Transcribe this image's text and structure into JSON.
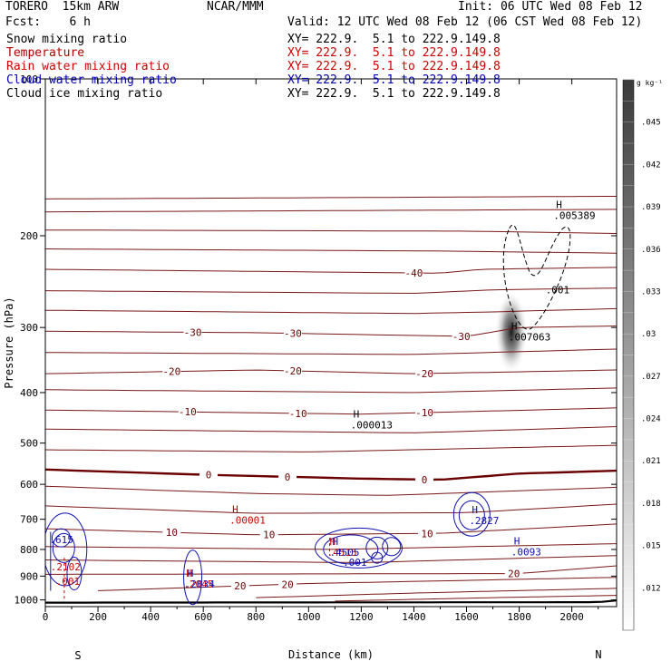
{
  "header": {
    "model": "TORERO  15km ARW",
    "center": "NCAR/MMM",
    "init": "Init: 06 UTC Wed 08 Feb 12",
    "fcst": "Fcst:    6 h",
    "valid": "Valid: 12 UTC Wed 08 Feb 12 (06 CST Wed 08 Feb 12)"
  },
  "fields": [
    {
      "name": "Snow mixing ratio",
      "xy": "XY= 222.9.  5.1 to 222.9.149.8",
      "color": "#000000"
    },
    {
      "name": "Temperature",
      "xy": "XY= 222.9.  5.1 to 222.9.149.8",
      "color": "#b00000"
    },
    {
      "name": "Rain water mixing ratio",
      "xy": "XY= 222.9.  5.1 to 222.9.149.8",
      "color": "#d00000"
    },
    {
      "name": "Cloud water mixing ratio",
      "xy": "XY= 222.9.  5.1 to 222.9.149.8",
      "color": "#0000b0"
    },
    {
      "name": "Cloud ice mixing ratio",
      "xy": "XY= 222.9.  5.1 to 222.9.149.8",
      "color": "#000000"
    }
  ],
  "colors": {
    "temperature": "#7a1818",
    "temperature_zero": "#6a0000",
    "rain": "#cc0000",
    "cloud_water": "#1010b0",
    "ice": "#000000",
    "snow_shade": "#000000"
  },
  "chart_data": {
    "type": "contour",
    "title": "",
    "xlabel": "Distance (km)",
    "ylabel": "Pressure (hPa)",
    "xlim": [
      0,
      2170
    ],
    "ylim": [
      1030,
      100
    ],
    "y_scale": "log",
    "x_ticks": [
      0,
      200,
      400,
      600,
      800,
      1000,
      1200,
      1400,
      1600,
      1800,
      2000
    ],
    "x_tick_labels": [
      "0",
      "200",
      "400",
      "600",
      "800",
      "1000",
      "1200",
      "1400",
      "1600",
      "1800",
      "2000"
    ],
    "y_ticks": [
      100,
      200,
      300,
      400,
      500,
      600,
      700,
      800,
      900,
      1000
    ],
    "y_tick_labels": [
      "100",
      "200",
      "300",
      "400",
      "500",
      "600",
      "700",
      "800",
      "900",
      "1000"
    ],
    "end_labels": {
      "left": "S",
      "right": "N"
    },
    "colorbar": {
      "unit": "g kg⁻¹",
      "ticks": [
        0.012,
        0.015,
        0.018,
        0.021,
        0.024,
        0.027,
        0.03,
        0.033,
        0.036,
        0.039,
        0.042,
        0.045
      ],
      "tick_labels": [
        ".012",
        ".015",
        ".018",
        ".021",
        ".024",
        ".027",
        ".03",
        ".033",
        ".036",
        ".039",
        ".042",
        ".045"
      ],
      "range": [
        0.009,
        0.048
      ]
    },
    "temperature_contours": [
      {
        "pressure_at_x": [
          [
            0,
            170
          ],
          [
            2170,
            168
          ]
        ]
      },
      {
        "pressure_at_x": [
          [
            0,
            180
          ],
          [
            2170,
            178
          ]
        ]
      },
      {
        "pressure_at_x": [
          [
            0,
            195
          ],
          [
            1600,
            196
          ],
          [
            2170,
            198
          ]
        ]
      },
      {
        "pressure_at_x": [
          [
            0,
            212
          ],
          [
            1500,
            214
          ],
          [
            2170,
            216
          ]
        ]
      },
      {
        "pressure_at_x": [
          [
            0,
            232
          ],
          [
            1500,
            236
          ],
          [
            1650,
            232
          ],
          [
            2170,
            230
          ]
        ],
        "label": "-40",
        "label_x": 1400
      },
      {
        "pressure_at_x": [
          [
            0,
            255
          ],
          [
            1400,
            258
          ],
          [
            1700,
            254
          ],
          [
            2170,
            252
          ]
        ]
      },
      {
        "pressure_at_x": [
          [
            0,
            278
          ],
          [
            1400,
            282
          ],
          [
            1700,
            280
          ],
          [
            2170,
            276
          ]
        ]
      },
      {
        "pressure_at_x": [
          [
            0,
            305
          ],
          [
            800,
            307
          ],
          [
            1600,
            312
          ],
          [
            1800,
            300
          ],
          [
            2170,
            298
          ]
        ],
        "label": "-30",
        "labels_x": [
          560,
          940,
          1580
        ]
      },
      {
        "pressure_at_x": [
          [
            0,
            335
          ],
          [
            1400,
            338
          ],
          [
            2170,
            330
          ]
        ]
      },
      {
        "pressure_at_x": [
          [
            0,
            368
          ],
          [
            800,
            362
          ],
          [
            1400,
            368
          ],
          [
            2170,
            362
          ]
        ],
        "label": "-20",
        "labels_x": [
          480,
          940,
          1440
        ]
      },
      {
        "pressure_at_x": [
          [
            0,
            395
          ],
          [
            1400,
            400
          ],
          [
            2170,
            392
          ]
        ]
      },
      {
        "pressure_at_x": [
          [
            0,
            432
          ],
          [
            1200,
            440
          ],
          [
            2170,
            428
          ]
        ],
        "label": "-10",
        "labels_x": [
          540,
          960,
          1440
        ]
      },
      {
        "pressure_at_x": [
          [
            0,
            470
          ],
          [
            1400,
            478
          ],
          [
            2170,
            465
          ]
        ]
      },
      {
        "pressure_at_x": [
          [
            0,
            515
          ],
          [
            1000,
            520
          ],
          [
            2170,
            505
          ]
        ]
      },
      {
        "pressure_at_x": [
          [
            0,
            562
          ],
          [
            600,
            575
          ],
          [
            1200,
            585
          ],
          [
            1500,
            588
          ],
          [
            1800,
            572
          ],
          [
            2170,
            565
          ]
        ],
        "label": "0",
        "labels_x": [
          620,
          920,
          1440
        ],
        "freezing": true
      },
      {
        "pressure_at_x": [
          [
            0,
            605
          ],
          [
            800,
            625
          ],
          [
            1300,
            630
          ],
          [
            2170,
            608
          ]
        ]
      },
      {
        "pressure_at_x": [
          [
            0,
            660
          ],
          [
            800,
            682
          ],
          [
            1600,
            680
          ],
          [
            2170,
            655
          ]
        ]
      },
      {
        "pressure_at_x": [
          [
            0,
            730
          ],
          [
            800,
            750
          ],
          [
            1500,
            745
          ],
          [
            2170,
            715
          ]
        ],
        "label": "10",
        "labels_x": [
          480,
          850,
          1450
        ]
      },
      {
        "pressure_at_x": [
          [
            0,
            790
          ],
          [
            1100,
            800
          ],
          [
            2170,
            780
          ]
        ]
      },
      {
        "pressure_at_x": [
          [
            0,
            838
          ],
          [
            1200,
            848
          ],
          [
            2170,
            822
          ]
        ]
      },
      {
        "pressure_at_x": [
          [
            0,
            893
          ],
          [
            1800,
            890
          ],
          [
            2170,
            860
          ]
        ],
        "label": "20",
        "labels_x": [
          1780
        ]
      },
      {
        "pressure_at_x": [
          [
            200,
            960
          ],
          [
            1000,
            930
          ],
          [
            2170,
            905
          ]
        ],
        "label": "20",
        "labels_x": [
          740,
          920
        ]
      },
      {
        "pressure_at_x": [
          [
            800,
            990
          ],
          [
            1400,
            970
          ],
          [
            2170,
            950
          ]
        ]
      },
      {
        "pressure_at_x": [
          [
            1100,
            1005
          ],
          [
            1700,
            990
          ],
          [
            2170,
            980
          ]
        ]
      }
    ],
    "ground_pressure_at_x": [
      [
        0,
        1012
      ],
      [
        2100,
        1010
      ],
      [
        2170,
        1002
      ]
    ],
    "extrema": [
      {
        "field": "cloud_ice",
        "x": 1940,
        "p": 177,
        "value": ".005389"
      },
      {
        "field": "cloud_ice",
        "x": 1770,
        "p": 303,
        "value": ".007063"
      },
      {
        "field": "cloud_ice",
        "x": 1170,
        "p": 447,
        "value": ".000013"
      },
      {
        "field": "rain",
        "x": 710,
        "p": 680,
        "value": ".00001"
      },
      {
        "field": "cloud_water",
        "x": 1620,
        "p": 682,
        "value": ".2827"
      },
      {
        "field": "cloud_water",
        "x": 1780,
        "p": 782,
        "value": ".0093"
      },
      {
        "field": "rain",
        "x": 1080,
        "p": 785,
        "value": ".4515"
      },
      {
        "field": "cloud_water",
        "x": 1090,
        "p": 785,
        "value": ".4505"
      },
      {
        "field": "rain",
        "x": 535,
        "p": 903,
        "value": ".2045"
      },
      {
        "field": "cloud_water",
        "x": 540,
        "p": 903,
        "value": ".2034"
      }
    ],
    "contour_labels": [
      {
        "field": "cloud_ice",
        "x": 1900,
        "p": 258,
        "value": ".001"
      },
      {
        "field": "cloud_water",
        "x": 1130,
        "p": 860,
        "value": ".001"
      },
      {
        "field": "cloud_water",
        "x": 15,
        "p": 778,
        "value": ".615"
      },
      {
        "field": "rain",
        "x": 20,
        "p": 877,
        "value": ".2102"
      },
      {
        "field": "rain",
        "x": 40,
        "p": 935,
        "value": ".001"
      }
    ]
  }
}
